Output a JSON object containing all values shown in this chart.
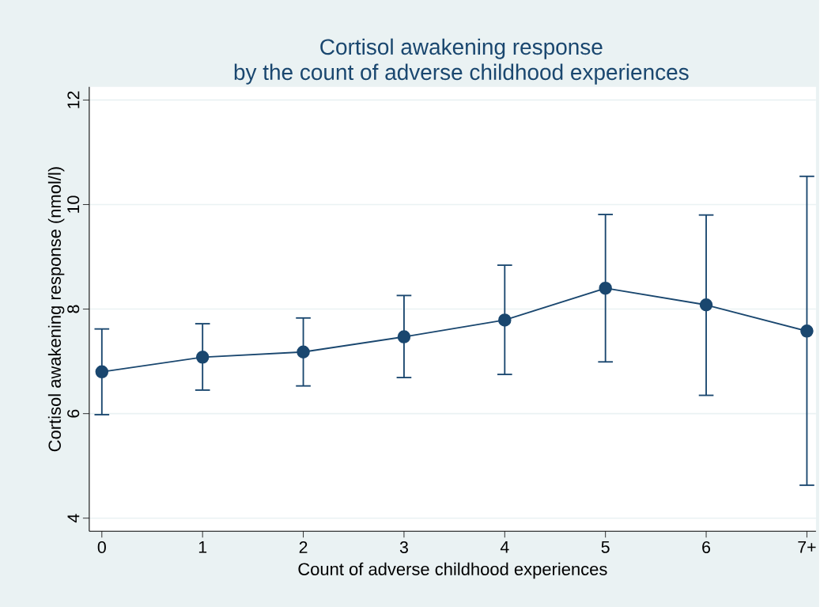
{
  "chart_data": {
    "type": "line",
    "title": "Cortisol awakening response",
    "subtitle": "by the count of adverse childhood experiences",
    "xlabel": "Count of adverse childhood experiences",
    "ylabel": "Cortisol awakening response (nmol/l)",
    "categories": [
      "0",
      "1",
      "2",
      "3",
      "4",
      "5",
      "6",
      "7+"
    ],
    "values": [
      6.8,
      7.08,
      7.18,
      7.47,
      7.79,
      8.4,
      8.08,
      7.58
    ],
    "errors": [
      [
        5.98,
        7.62
      ],
      [
        6.45,
        7.72
      ],
      [
        6.53,
        7.83
      ],
      [
        6.69,
        8.26
      ],
      [
        6.75,
        8.84
      ],
      [
        6.99,
        9.81
      ],
      [
        6.35,
        9.8
      ],
      [
        4.63,
        10.54
      ]
    ],
    "color": "#1a476f",
    "marker": "circle",
    "line_style": "solid",
    "grid": "y",
    "ylim": [
      3.75,
      12.25
    ],
    "yticks": [
      4,
      6,
      8,
      10,
      12
    ]
  }
}
